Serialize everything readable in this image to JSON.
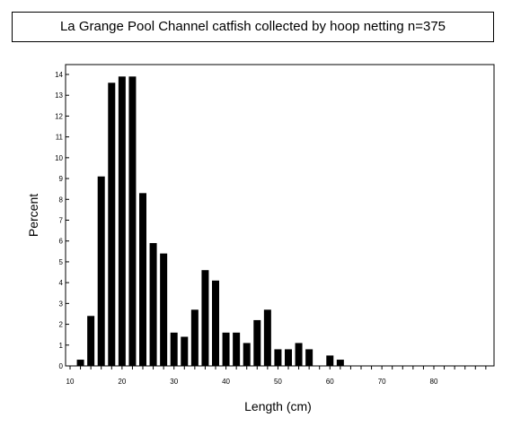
{
  "chart_data": {
    "type": "bar",
    "title": "La Grange Pool Channel catfish collected by hoop netting n=375",
    "xlabel": "Length (cm)",
    "ylabel": "Percent",
    "xlim": [
      10,
      90
    ],
    "ylim": [
      0,
      14
    ],
    "x_ticks": [
      10,
      20,
      30,
      40,
      50,
      60,
      70,
      80
    ],
    "y_ticks": [
      0,
      1,
      2,
      3,
      4,
      5,
      6,
      7,
      8,
      9,
      10,
      11,
      12,
      13,
      14
    ],
    "bar_width": 2,
    "bar_color": "#000000",
    "grid": false,
    "x": [
      12,
      14,
      16,
      18,
      20,
      22,
      24,
      26,
      28,
      30,
      32,
      34,
      36,
      38,
      40,
      42,
      44,
      46,
      48,
      50,
      52,
      54,
      56,
      58,
      60,
      62
    ],
    "values": [
      0.3,
      2.4,
      9.1,
      13.6,
      13.9,
      13.9,
      8.3,
      5.9,
      5.4,
      1.6,
      1.4,
      2.7,
      4.6,
      4.1,
      1.6,
      1.6,
      1.1,
      2.2,
      2.7,
      0.8,
      0.8,
      1.1,
      0.8,
      0,
      0.5,
      0.3
    ]
  }
}
